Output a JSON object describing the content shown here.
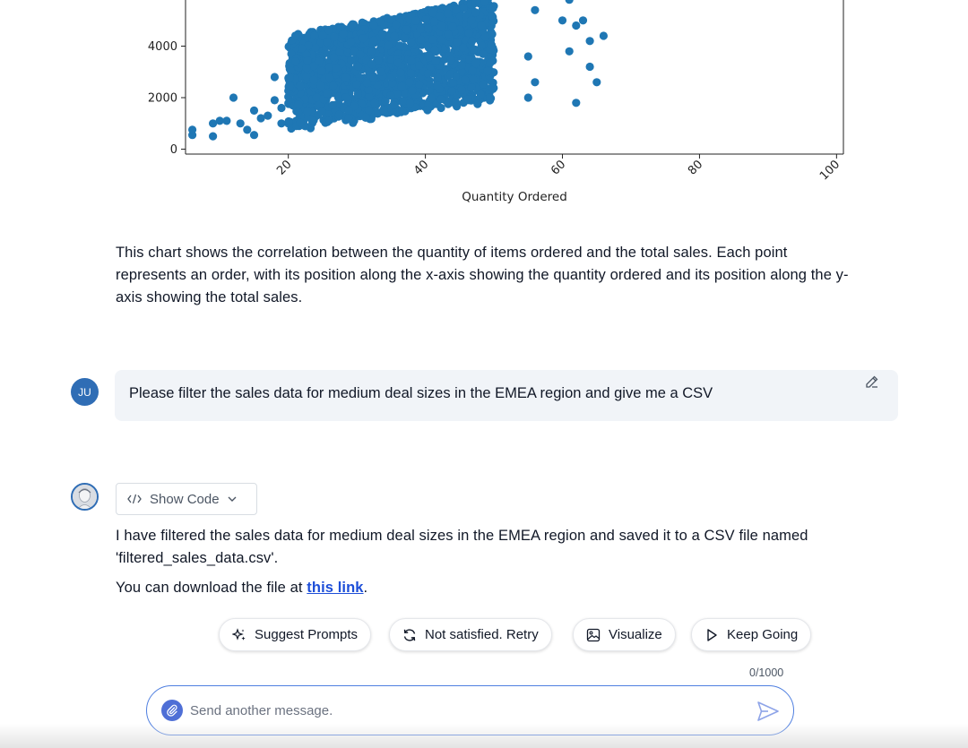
{
  "chart_data": {
    "type": "scatter",
    "xlabel": "Quantity Ordered",
    "ylabel": "",
    "x_ticks": [
      "20",
      "40",
      "60",
      "80",
      "100"
    ],
    "y_ticks": [
      "0",
      "2000",
      "4000"
    ],
    "xlim": [
      5,
      101
    ],
    "ylim": [
      -150,
      5800
    ],
    "color": "#1f77b4",
    "grid": false,
    "outliers": [
      {
        "x": 6,
        "y": 550
      },
      {
        "x": 6,
        "y": 750
      },
      {
        "x": 9,
        "y": 500
      },
      {
        "x": 9,
        "y": 1000
      },
      {
        "x": 10,
        "y": 1100
      },
      {
        "x": 11,
        "y": 1100
      },
      {
        "x": 12,
        "y": 2000
      },
      {
        "x": 13,
        "y": 1000
      },
      {
        "x": 14,
        "y": 750
      },
      {
        "x": 15,
        "y": 1500
      },
      {
        "x": 16,
        "y": 1200
      },
      {
        "x": 15,
        "y": 550
      },
      {
        "x": 17,
        "y": 1300
      },
      {
        "x": 18,
        "y": 1900
      },
      {
        "x": 18,
        "y": 2800
      },
      {
        "x": 19,
        "y": 1000
      },
      {
        "x": 19,
        "y": 1600
      },
      {
        "x": 55,
        "y": 3600
      },
      {
        "x": 55,
        "y": 2000
      },
      {
        "x": 56,
        "y": 5400
      },
      {
        "x": 56,
        "y": 2600
      },
      {
        "x": 60,
        "y": 5000
      },
      {
        "x": 61,
        "y": 3800
      },
      {
        "x": 61,
        "y": 5800
      },
      {
        "x": 62,
        "y": 1800
      },
      {
        "x": 62,
        "y": 4800
      },
      {
        "x": 63,
        "y": 5000
      },
      {
        "x": 64,
        "y": 3200
      },
      {
        "x": 64,
        "y": 4200
      },
      {
        "x": 65,
        "y": 2600
      },
      {
        "x": 66,
        "y": 4400
      }
    ],
    "dense_cluster": {
      "x_range": [
        20,
        50
      ],
      "y_range": [
        600,
        5800
      ],
      "note": "dense band of points trending upward"
    }
  },
  "chart_description": "This chart shows the correlation between the quantity of items ordered and the total sales. Each point represents an order, with its position along the x-axis showing the quantity ordered and its position along the y-axis showing the total sales.",
  "user": {
    "initials": "JU",
    "message": "Please filter the sales data for medium deal sizes in the EMEA region and give me a CSV"
  },
  "assistant": {
    "show_code_label": "Show Code",
    "response_line1": "I have filtered the sales data for medium deal sizes in the EMEA region and saved it to a CSV file named",
    "response_line2": "'filtered_sales_data.csv'.",
    "download_prefix": "You can download the file at ",
    "download_link": "this link",
    "download_suffix": "."
  },
  "actions": {
    "suggest": "Suggest Prompts",
    "retry": "Not satisfied. Retry",
    "visualize": "Visualize",
    "keep_going": "Keep Going"
  },
  "composer": {
    "counter": "0/1000",
    "placeholder": "Send another message."
  },
  "icons": [
    "sparkle-icon",
    "refresh-icon",
    "image-icon",
    "play-icon",
    "code-icon",
    "chevron-down-icon",
    "edit-icon",
    "paperclip-icon",
    "send-icon"
  ]
}
